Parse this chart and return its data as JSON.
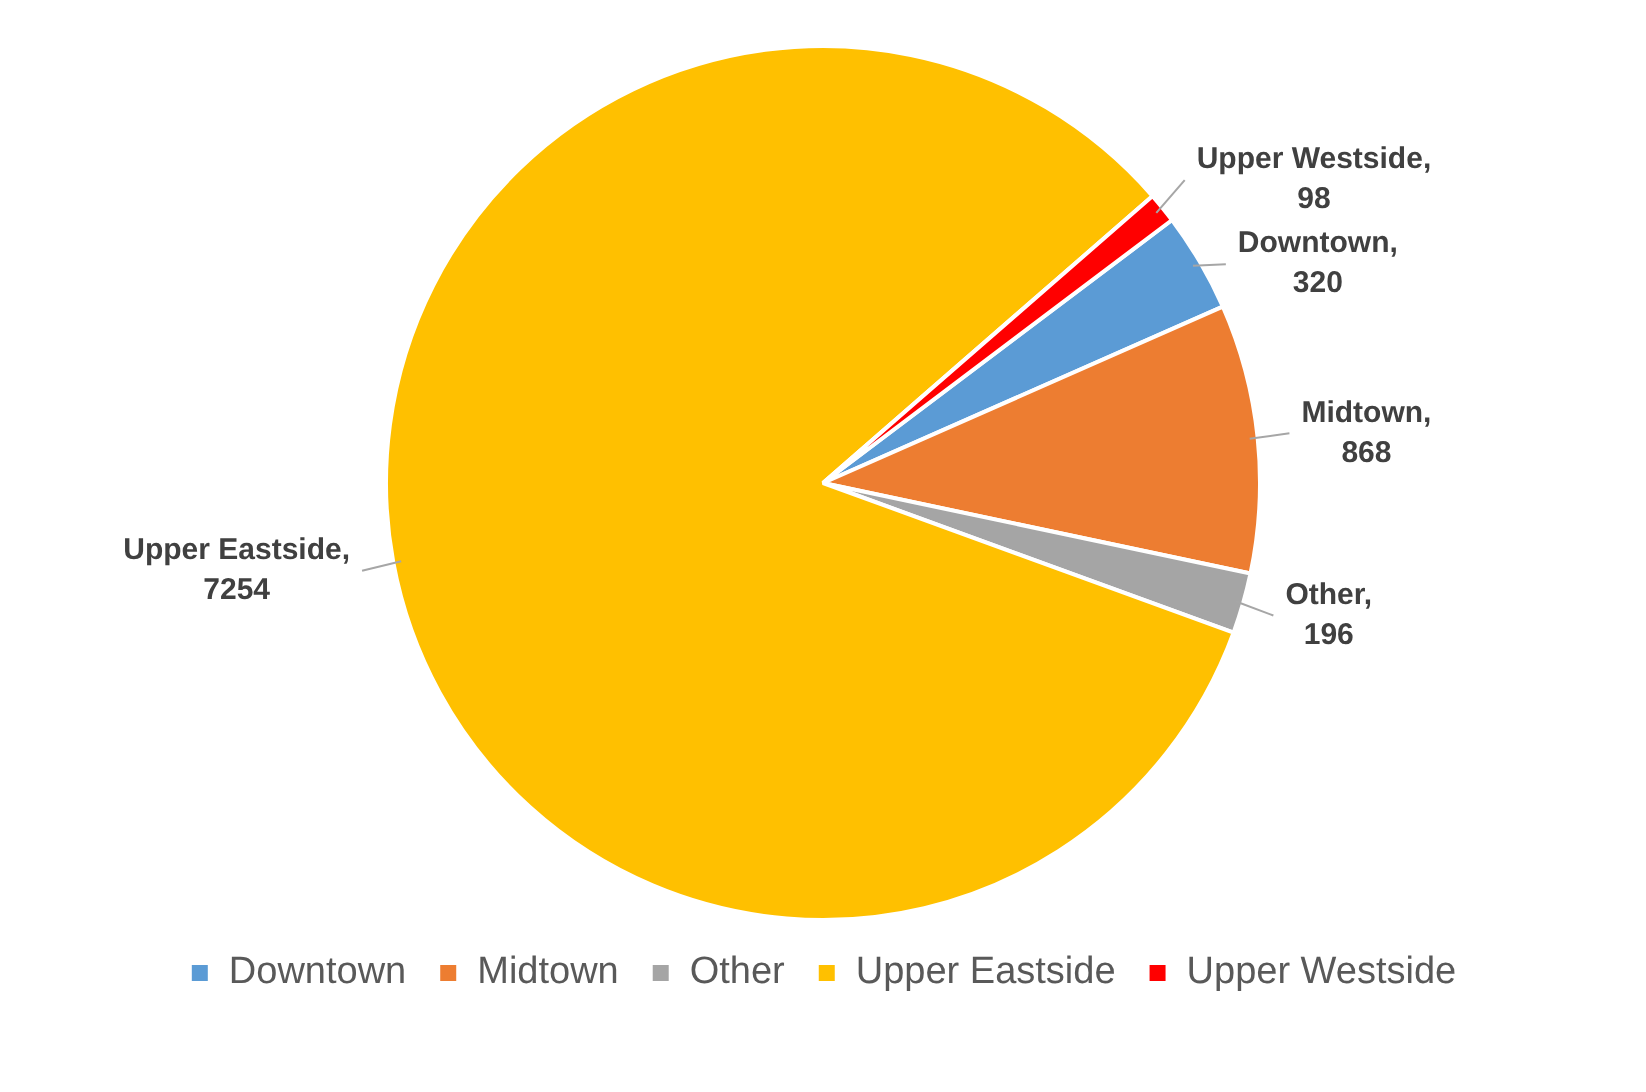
{
  "chart_data": {
    "type": "pie",
    "categories": [
      "Downtown",
      "Midtown",
      "Other",
      "Upper Eastside",
      "Upper Westside"
    ],
    "values": [
      320,
      868,
      196,
      7254,
      98
    ],
    "colors": [
      "#5b9bd5",
      "#ed7d31",
      "#a5a5a5",
      "#ffc000",
      "#ff0000"
    ],
    "value_labels": [
      "Downtown, 320",
      "Midtown, 868",
      "Other, 196",
      "Upper Eastside, 7254",
      "Upper Westside, 98"
    ],
    "legend": "bottom"
  }
}
